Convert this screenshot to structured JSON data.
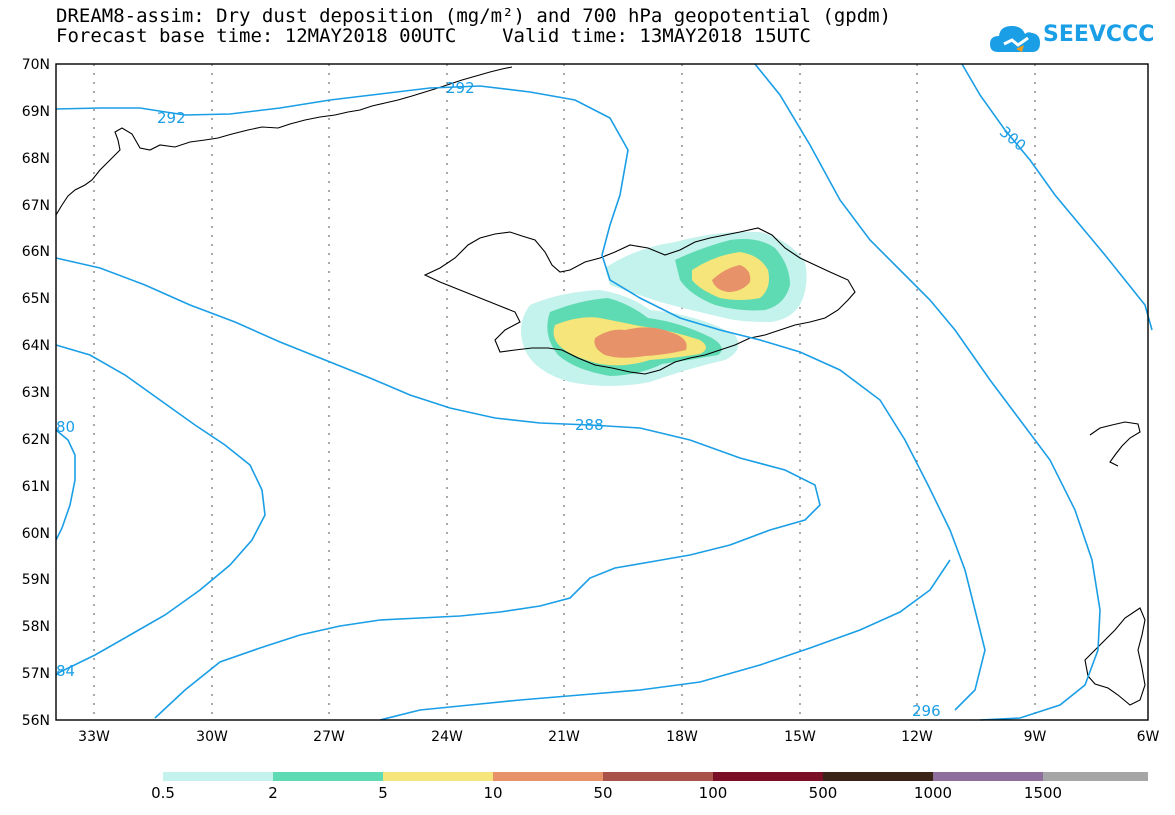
{
  "header": {
    "title_line1": "DREAM8-assim: Dry dust deposition (mg/m²) and 700 hPa geopotential (gpdm)",
    "title_line2": "Forecast base time: 12MAY2018 00UTC    Valid time: 13MAY2018 15UTC"
  },
  "logo": {
    "text": "SEEVCCC",
    "icon": "cloud-icon",
    "color": "#1a9ee6"
  },
  "map": {
    "lat_labels": [
      "70N",
      "69N",
      "68N",
      "67N",
      "66N",
      "65N",
      "64N",
      "63N",
      "62N",
      "61N",
      "60N",
      "59N",
      "58N",
      "57N",
      "56N"
    ],
    "lon_labels": [
      "33W",
      "30W",
      "27W",
      "24W",
      "21W",
      "18W",
      "15W",
      "12W",
      "9W",
      "6W"
    ],
    "lat_range": [
      56,
      70
    ],
    "lon_range": [
      -34.5,
      -6
    ],
    "contour_color": "#1a9ee6",
    "contour_labels": [
      {
        "text": "292",
        "lon": -31.0,
        "lat": 68.95
      },
      {
        "text": "292",
        "lon": -22.2,
        "lat": 69.55
      },
      {
        "text": "300",
        "lon": -10.2,
        "lat": 68.3
      },
      {
        "text": "288",
        "lon": -20.6,
        "lat": 62.3
      },
      {
        "text": "80",
        "lon": -34.2,
        "lat": 62.2
      },
      {
        "text": "84",
        "lon": -34.3,
        "lat": 57.1
      },
      {
        "text": "296",
        "lon": -11.8,
        "lat": 56.2
      }
    ]
  },
  "legend": {
    "colors": [
      "#c4f2ec",
      "#5fdbb3",
      "#f5e57a",
      "#e8926a",
      "#a8524a",
      "#7a0f25",
      "#3a2418",
      "#8e6e9c",
      "#a6a6a6"
    ],
    "labels": [
      "0.5",
      "2",
      "5",
      "10",
      "50",
      "100",
      "500",
      "1000",
      "1500"
    ]
  }
}
